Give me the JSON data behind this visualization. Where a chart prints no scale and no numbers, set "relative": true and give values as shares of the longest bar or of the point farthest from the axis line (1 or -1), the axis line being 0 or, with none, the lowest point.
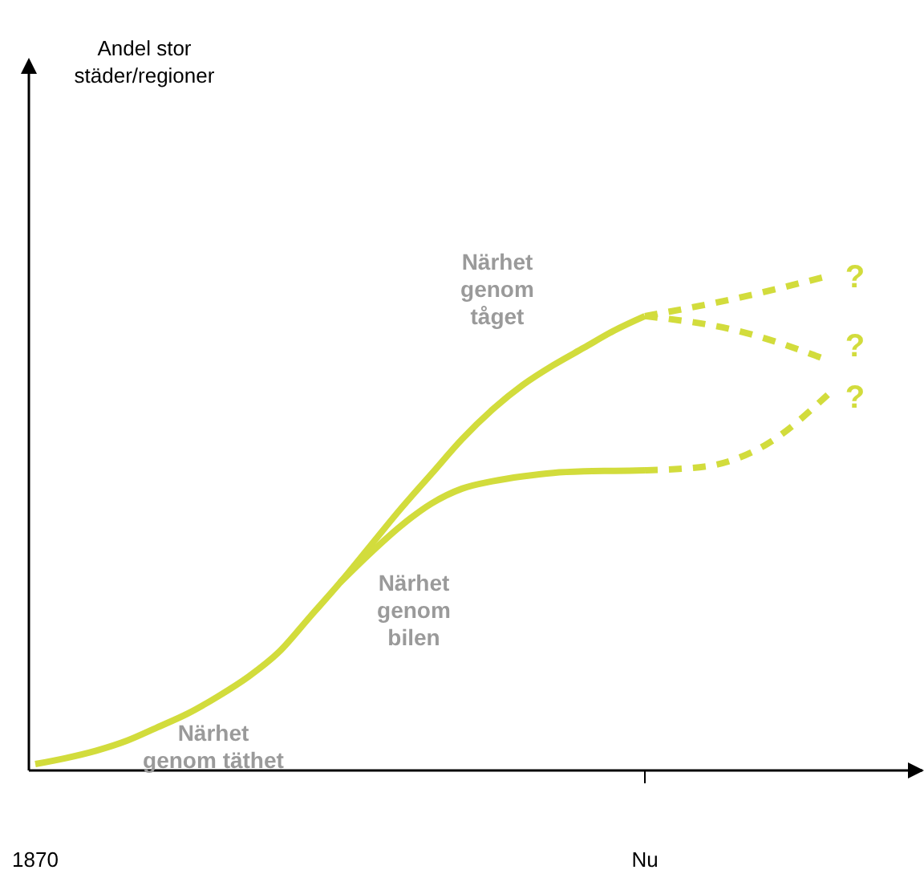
{
  "chart_data": {
    "type": "line",
    "relative": true,
    "categories": [
      "1870",
      null,
      null,
      null,
      null,
      null,
      null,
      null,
      null,
      null,
      null,
      null,
      null,
      null,
      null,
      null,
      null,
      null,
      null,
      null,
      "Nu",
      null,
      null,
      null,
      null,
      null,
      null,
      null,
      null,
      null
    ],
    "series": [
      {
        "color": "#d2dc3c",
        "line_style": "solid",
        "values": [
          0.013,
          0.025,
          0.04,
          0.06,
          0.087,
          0.115,
          0.15,
          0.19,
          0.24,
          0.31,
          0.38,
          0.455,
          0.53,
          0.6,
          0.67,
          0.73,
          0.78,
          0.82,
          0.855,
          0.89,
          0.919,
          null,
          null,
          null,
          null,
          null,
          null,
          null,
          null,
          null
        ]
      },
      {
        "color": "#d2dc3c",
        "line_style": "solid",
        "values": [
          null,
          null,
          null,
          null,
          null,
          null,
          null,
          null,
          null,
          null,
          0.38,
          0.44,
          0.495,
          0.54,
          0.57,
          0.585,
          0.595,
          0.602,
          0.605,
          0.606,
          0.607,
          null,
          null,
          null,
          null,
          null,
          null,
          null,
          null,
          null
        ]
      },
      {
        "color": "#d2dc3c",
        "line_style": "dashed",
        "values": [
          null,
          null,
          null,
          null,
          null,
          null,
          null,
          null,
          null,
          null,
          null,
          null,
          null,
          null,
          null,
          null,
          null,
          null,
          null,
          null,
          0.919,
          null,
          null,
          0.955,
          null,
          null,
          1,
          null,
          null,
          null
        ]
      },
      {
        "color": "#d2dc3c",
        "line_style": "dashed",
        "values": [
          null,
          null,
          null,
          null,
          null,
          null,
          null,
          null,
          null,
          null,
          null,
          null,
          null,
          null,
          null,
          null,
          null,
          null,
          null,
          null,
          0.919,
          null,
          null,
          0.89,
          null,
          null,
          0.83,
          null,
          null,
          null
        ]
      },
      {
        "color": "#d2dc3c",
        "line_style": "dashed",
        "values": [
          null,
          null,
          null,
          null,
          null,
          null,
          null,
          null,
          null,
          null,
          null,
          null,
          null,
          null,
          null,
          null,
          null,
          null,
          null,
          null,
          0.607,
          null,
          0.615,
          null,
          0.66,
          null,
          0.76,
          null,
          null,
          null
        ]
      }
    ],
    "annotations": [
      "Andel stor\nstäder/regioner",
      "Närhet\ngenom\ntåget",
      "Närhet\ngenom\nbilen",
      "Närhet\ngenom täthet",
      "?",
      "?",
      "?"
    ]
  }
}
